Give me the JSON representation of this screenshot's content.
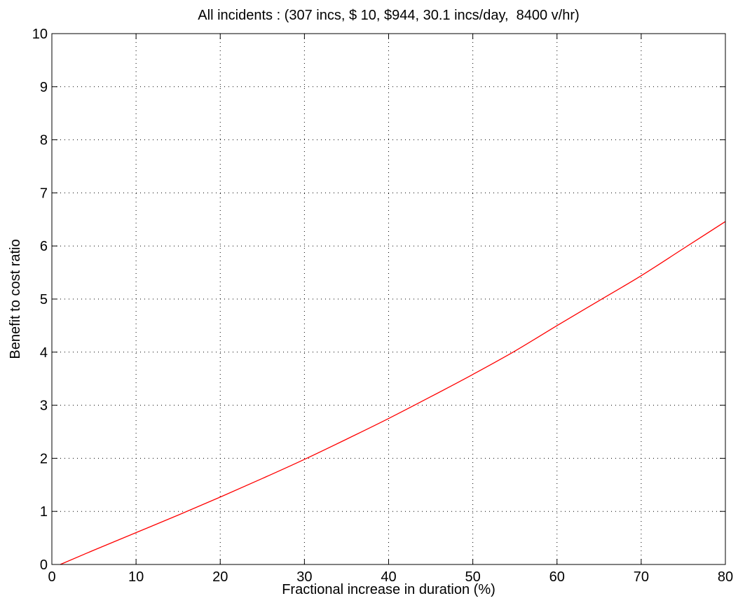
{
  "chart_data": {
    "type": "line",
    "title": "All incidents : (307 incs, $ 10, $944, 30.1 incs/day,  8400 v/hr)",
    "xlabel": "Fractional increase in duration (%)",
    "ylabel": "Benefit to cost ratio",
    "xlim": [
      0,
      80
    ],
    "ylim": [
      0,
      10
    ],
    "xticks": [
      0,
      10,
      20,
      30,
      40,
      50,
      60,
      70,
      80
    ],
    "yticks": [
      0,
      1,
      2,
      3,
      4,
      5,
      6,
      7,
      8,
      9,
      10
    ],
    "grid": true,
    "grid_style": "dotted",
    "series": [
      {
        "color": "#ff0000",
        "x": [
          1,
          5,
          10,
          15,
          20,
          25,
          30,
          35,
          40,
          45,
          50,
          55,
          60,
          65,
          70,
          75,
          80
        ],
        "y": [
          0.0,
          0.27,
          0.6,
          0.93,
          1.27,
          1.62,
          1.98,
          2.36,
          2.75,
          3.16,
          3.58,
          4.02,
          4.5,
          4.97,
          5.44,
          5.95,
          6.46
        ]
      }
    ]
  }
}
